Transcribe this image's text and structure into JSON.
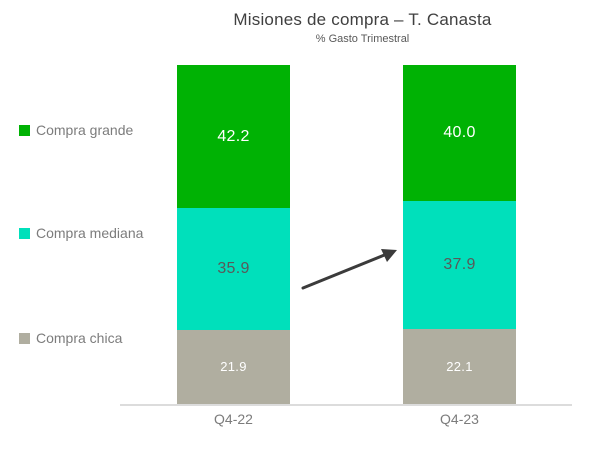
{
  "header": {
    "title": "Misiones de compra – T. Canasta",
    "subtitle": "% Gasto Trimestral"
  },
  "colors": {
    "compra_grande": "#00b204",
    "compra_mediana": "#00e0bb",
    "compra_chica": "#b0aea0",
    "title_text": "#404040",
    "legend_text": "#7c7c7c",
    "axis_line": "#dcdcdc",
    "axis_text": "#7c7c7c",
    "arrow": "#3b3b3b",
    "label_on_dark": "#ffffff",
    "label_on_mint": "#595959"
  },
  "chart_data": {
    "type": "bar",
    "stacked": true,
    "title": "Misiones de compra – T. Canasta",
    "subtitle": "% Gasto Trimestral",
    "categories": [
      "Q4-22",
      "Q4-23"
    ],
    "series": [
      {
        "name": "Compra grande",
        "values": [
          42.2,
          40.0
        ],
        "labels": [
          "42.2",
          "40.0"
        ],
        "color": "#00b204",
        "label_color": "#ffffff"
      },
      {
        "name": "Compra mediana",
        "values": [
          35.9,
          37.9
        ],
        "labels": [
          "35.9",
          "37.9"
        ],
        "color": "#00e0bb",
        "label_color": "#595959"
      },
      {
        "name": "Compra chica",
        "values": [
          21.9,
          22.1
        ],
        "labels": [
          "21.9",
          "22.1"
        ],
        "color": "#b0aea0",
        "label_color": "#ffffff"
      }
    ],
    "ylim": [
      0,
      100
    ],
    "grid": false,
    "legend_position": "left",
    "annotations": [
      {
        "type": "arrow",
        "from": "Q4-22 mediana",
        "to": "Q4-23 mediana",
        "direction": "up-right"
      }
    ]
  }
}
